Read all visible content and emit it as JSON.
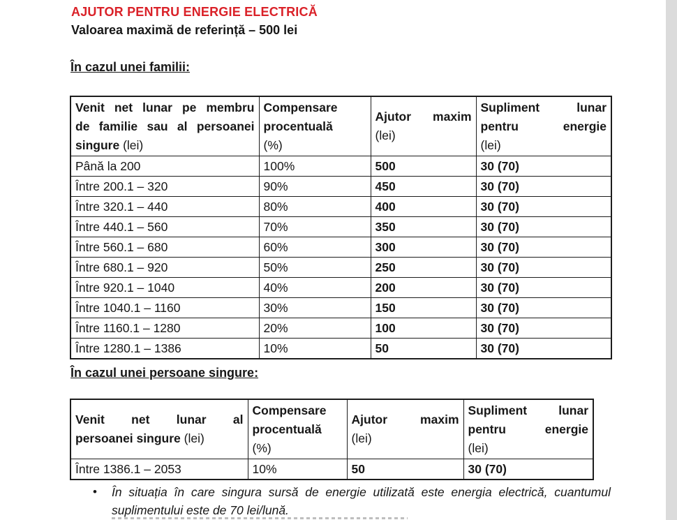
{
  "page": {
    "title": "AJUTOR PENTRU ENERGIE ELECTRICĂ",
    "subtitle": "Valoarea maximă de referință – 500 lei"
  },
  "family_section": {
    "heading": "În cazul unei familii:",
    "table": {
      "header_cells": [
        {
          "lines": [
            {
              "bold": "Venit net lunar pe membru",
              "normal": "",
              "justify": true
            },
            {
              "bold": "de familie sau al persoanei",
              "normal": "",
              "justify": true
            },
            {
              "bold": "singure",
              "normal": "(lei)",
              "justify": false
            }
          ]
        },
        {
          "lines": [
            {
              "bold": "Compensare",
              "normal": "",
              "justify": false
            },
            {
              "bold": "procentuală",
              "normal": "",
              "justify": false
            },
            {
              "bold": "",
              "normal": "(%)",
              "justify": false
            }
          ]
        },
        {
          "lines": [
            {
              "bold": "Ajutor maxim",
              "normal": "",
              "justify": true
            },
            {
              "bold": "",
              "normal": "(lei)",
              "justify": false
            }
          ]
        },
        {
          "lines": [
            {
              "bold": "Supliment lunar",
              "normal": "",
              "justify": true
            },
            {
              "bold": "pentru energie",
              "normal": "",
              "justify": true
            },
            {
              "bold": "",
              "normal": "(lei)",
              "justify": false
            }
          ]
        }
      ],
      "rows": [
        [
          "Până la 200",
          "100%",
          "500",
          "30 (70)"
        ],
        [
          "Între 200.1 – 320",
          "90%",
          "450",
          "30 (70)"
        ],
        [
          "Între 320.1 – 440",
          "80%",
          "400",
          "30 (70)"
        ],
        [
          "Între 440.1 – 560",
          "70%",
          "350",
          "30 (70)"
        ],
        [
          "Între 560.1 – 680",
          "60%",
          "300",
          "30 (70)"
        ],
        [
          "Între 680.1 – 920",
          "50%",
          "250",
          "30 (70)"
        ],
        [
          "Între 920.1 – 1040",
          "40%",
          "200",
          "30 (70)"
        ],
        [
          "Între 1040.1 – 1160",
          "30%",
          "150",
          "30 (70)"
        ],
        [
          "Între 1160.1 – 1280",
          "20%",
          "100",
          "30 (70)"
        ],
        [
          "Între 1280.1 – 1386",
          "10%",
          "50",
          "30 (70)"
        ]
      ]
    }
  },
  "single_section": {
    "heading": "În cazul unei persoane singure:",
    "table": {
      "header_cells": [
        {
          "lines": [
            {
              "bold": "Venit net lunar al",
              "normal": "",
              "justify": true
            },
            {
              "bold": "persoanei singure",
              "normal": "(lei)",
              "justify": false
            }
          ]
        },
        {
          "lines": [
            {
              "bold": "Compensare",
              "normal": "",
              "justify": false
            },
            {
              "bold": "procentuală",
              "normal": "",
              "justify": false
            },
            {
              "bold": "",
              "normal": "(%)",
              "justify": false
            }
          ]
        },
        {
          "lines": [
            {
              "bold": "Ajutor maxim",
              "normal": "",
              "justify": true
            },
            {
              "bold": "",
              "normal": "(lei)",
              "justify": false
            }
          ]
        },
        {
          "lines": [
            {
              "bold": "Supliment lunar",
              "normal": "",
              "justify": true
            },
            {
              "bold": "pentru energie",
              "normal": "",
              "justify": true
            },
            {
              "bold": "",
              "normal": "(lei)",
              "justify": false
            }
          ]
        }
      ],
      "rows": [
        [
          "Între 1386.1 – 2053",
          "10%",
          "50",
          "30 (70)"
        ]
      ]
    }
  },
  "note": {
    "bullet": "•",
    "text": "În situația în care singura sursă de energie utilizată este energia electrică, cuantumul suplimentului este de 70 lei/lună."
  },
  "colors": {
    "title_red": "#da2128",
    "border": "#1c1c1c",
    "edge_strip": "#dbdbdb"
  }
}
